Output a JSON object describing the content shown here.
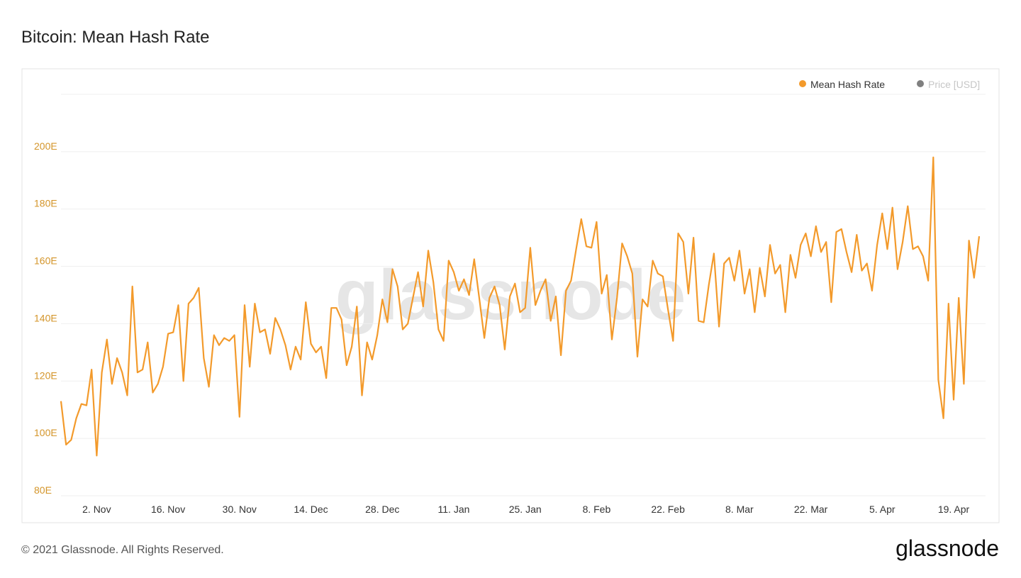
{
  "chart_data": {
    "type": "line",
    "title": "Bitcoin: Mean Hash Rate",
    "watermark": "glassnode",
    "footer": "© 2021 Glassnode. All Rights Reserved.",
    "brand": "glassnode",
    "categories": [
      null,
      null,
      null,
      null,
      null,
      null,
      null,
      "2. Nov",
      null,
      null,
      null,
      null,
      null,
      null,
      null,
      null,
      null,
      null,
      null,
      null,
      null,
      "16. Nov",
      null,
      null,
      null,
      null,
      null,
      null,
      null,
      null,
      null,
      null,
      null,
      null,
      null,
      "30. Nov",
      null,
      null,
      null,
      null,
      null,
      null,
      null,
      null,
      null,
      null,
      null,
      null,
      null,
      "14. Dec",
      null,
      null,
      null,
      null,
      null,
      null,
      null,
      null,
      null,
      null,
      null,
      null,
      null,
      "28. Dec",
      null,
      null,
      null,
      null,
      null,
      null,
      null,
      null,
      null,
      null,
      null,
      null,
      null,
      "11. Jan",
      null,
      null,
      null,
      null,
      null,
      null,
      null,
      null,
      null,
      null,
      null,
      null,
      null,
      "25. Jan",
      null,
      null,
      null,
      null,
      null,
      null,
      null,
      null,
      null,
      null,
      null,
      null,
      null,
      "8. Feb",
      null,
      null,
      null,
      null,
      null,
      null,
      null,
      null,
      null,
      null,
      null,
      null,
      null,
      "22. Feb",
      null,
      null,
      null,
      null,
      null,
      null,
      null,
      null,
      null,
      null,
      null,
      null,
      null,
      "8. Mar",
      null,
      null,
      null,
      null,
      null,
      null,
      null,
      null,
      null,
      null,
      null,
      null,
      null,
      "22. Mar",
      null,
      null,
      null,
      null,
      null,
      null,
      null,
      null,
      null,
      null,
      null,
      null,
      null,
      "5. Apr",
      null,
      null,
      null,
      null,
      null,
      null,
      null,
      null,
      null,
      null,
      null,
      null,
      null,
      "19. Apr",
      null,
      null,
      null,
      null,
      null
    ],
    "series": [
      {
        "name": "Mean Hash Rate",
        "color": "#f39a2b",
        "values": [
          113,
          97.8,
          99.5,
          107,
          112,
          111.5,
          124,
          94,
          123,
          134.5,
          119,
          128,
          123,
          115,
          153,
          123,
          124,
          133.5,
          116,
          119,
          125,
          136.5,
          137,
          146.5,
          120,
          147,
          149,
          152.5,
          128,
          118,
          136,
          132.5,
          135,
          134,
          136,
          107.5,
          146.5,
          125,
          147,
          137,
          138,
          129.5,
          142,
          138,
          132.5,
          124,
          132,
          127.5,
          147.5,
          133,
          130,
          132,
          121,
          145.5,
          145.5,
          141.5,
          125.5,
          132,
          146,
          115,
          133.5,
          127.5,
          136,
          148.5,
          140.5,
          159,
          153,
          138,
          140,
          149,
          158,
          146,
          165.5,
          154.5,
          138,
          134,
          162,
          158,
          151.5,
          155.5,
          150,
          162.5,
          149,
          135,
          149,
          153,
          146.5,
          131,
          149.5,
          154,
          144,
          145.5,
          166.5,
          146.5,
          151.5,
          155.5,
          141,
          149.5,
          129,
          151.5,
          155,
          166,
          176.5,
          167,
          166.5,
          175.5,
          150.5,
          157,
          134.5,
          149,
          168,
          163.5,
          157.5,
          128.5,
          148.5,
          146,
          162,
          157.5,
          156.5,
          145,
          134,
          171.5,
          168.5,
          150.5,
          170,
          141,
          140.5,
          153.5,
          164.5,
          139,
          161,
          163,
          155,
          165.5,
          150.5,
          159,
          144,
          159.5,
          149.5,
          167.5,
          157.5,
          160.5,
          144,
          164,
          156,
          167.5,
          171.5,
          163.5,
          174,
          165,
          168.5,
          147.5,
          172,
          173,
          165,
          158,
          171,
          158.5,
          161,
          151.5,
          167.5,
          178.5,
          166,
          180.5,
          159,
          168.5,
          181,
          166,
          167,
          163.5,
          155,
          198,
          120.5,
          107,
          147,
          113.5,
          149,
          119,
          169,
          156,
          170.5
        ]
      }
    ],
    "hidden_series": [
      {
        "name": "Price [USD]",
        "color": "#808080"
      }
    ],
    "ylim": [
      80,
      220
    ],
    "yticks": [
      {
        "value": 80,
        "label": "80E"
      },
      {
        "value": 100,
        "label": "100E"
      },
      {
        "value": 120,
        "label": "120E"
      },
      {
        "value": 140,
        "label": "140E"
      },
      {
        "value": 160,
        "label": "160E"
      },
      {
        "value": 180,
        "label": "180E"
      },
      {
        "value": 200,
        "label": "200E"
      }
    ],
    "grid": true
  }
}
